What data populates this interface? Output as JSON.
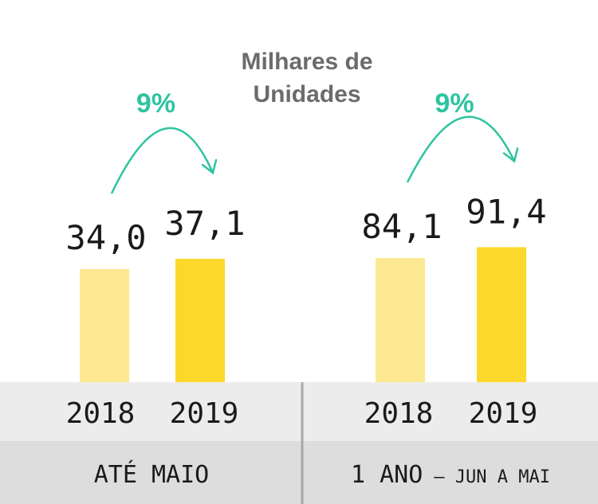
{
  "title": "Milhares de Unidades",
  "title_lines": [
    "Milhares de",
    "Unidades"
  ],
  "colors": {
    "bar_2018": "#fce992",
    "bar_2019": "#fcd82c",
    "growth": "#2ec4a0",
    "band_years": "#ececec",
    "band_period": "#dddddd",
    "divider": "#a8a8a8"
  },
  "chart_data": [
    {
      "type": "bar",
      "group_label": "ATÉ MAIO",
      "categories": [
        "2018",
        "2019"
      ],
      "values": [
        34.0,
        37.1
      ],
      "value_labels": [
        "34,0",
        "37,1"
      ],
      "growth_label": "9%"
    },
    {
      "type": "bar",
      "group_label_main": "1 ANO",
      "group_label_sub": "– JUN A MAI",
      "categories": [
        "2018",
        "2019"
      ],
      "values": [
        84.1,
        91.4
      ],
      "value_labels": [
        "84,1",
        "91,4"
      ],
      "growth_label": "9%"
    }
  ]
}
